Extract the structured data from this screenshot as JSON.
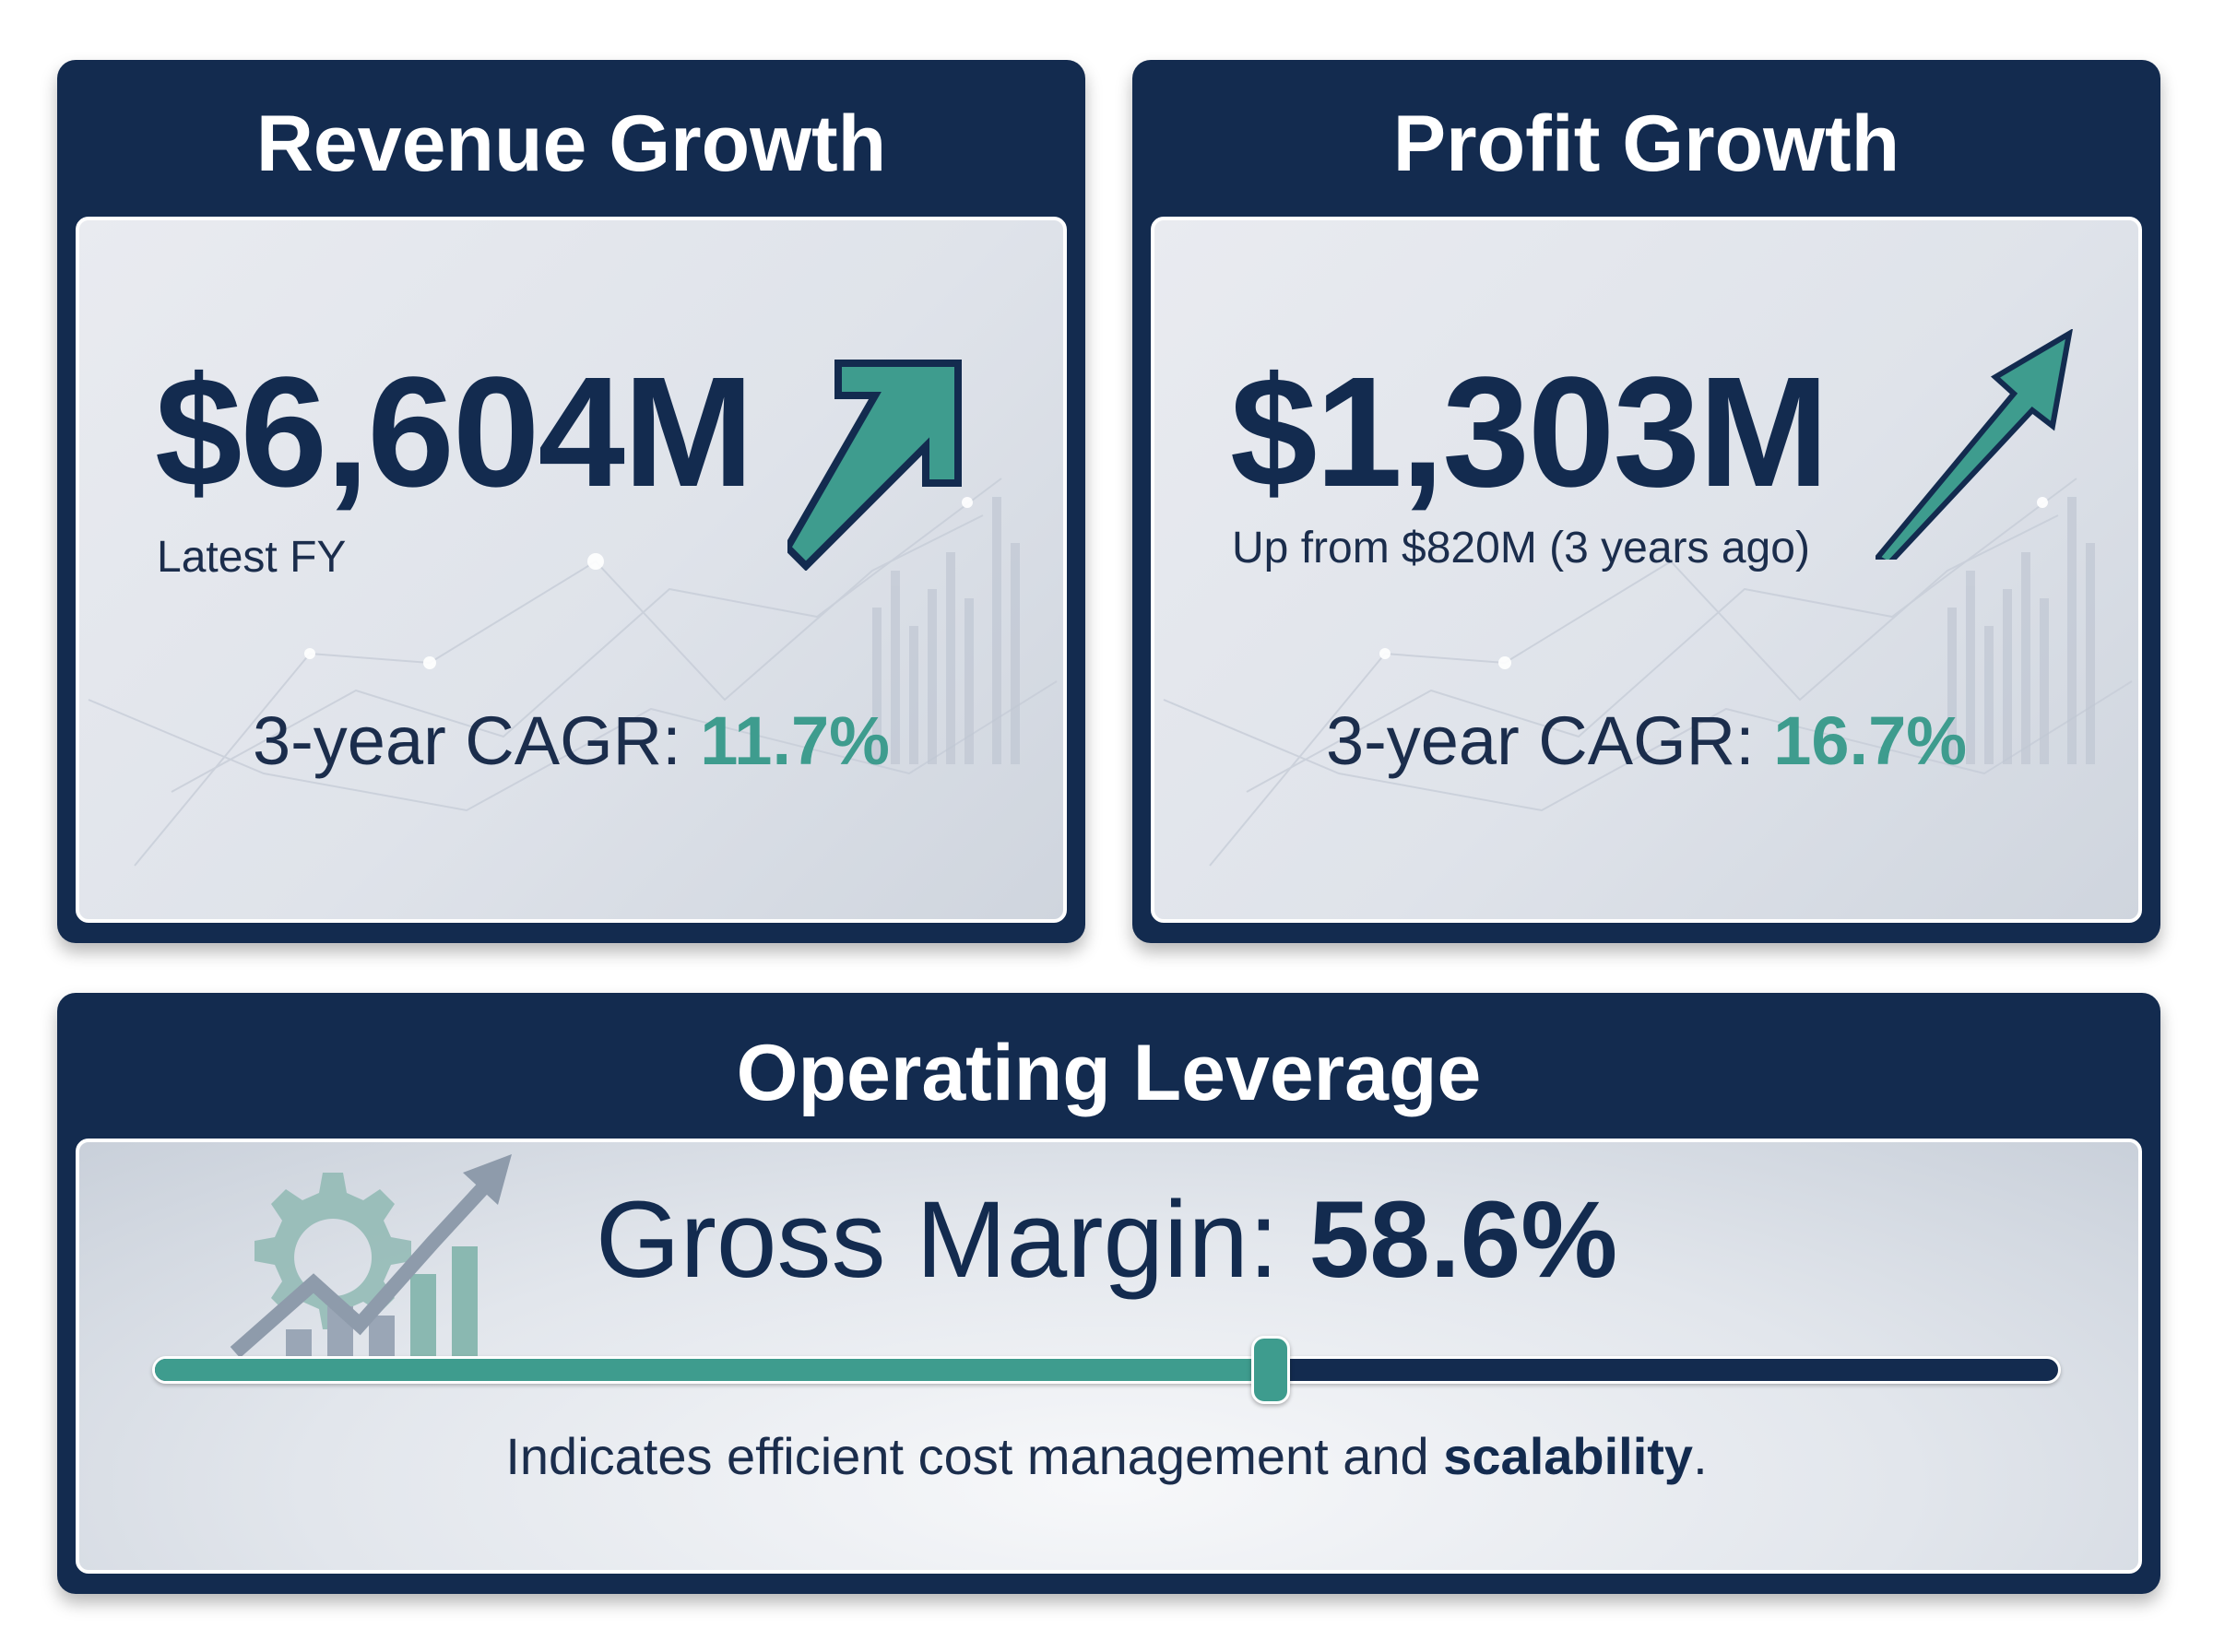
{
  "revenue": {
    "title": "Revenue Growth",
    "value": "$6,604M",
    "subtitle": "Latest FY",
    "cagr_label": "3-year CAGR: ",
    "cagr_value": "11.7%"
  },
  "profit": {
    "title": "Profit Growth",
    "value": "$1,303M",
    "subtitle": "Up from $820M (3 years ago)",
    "cagr_label": "3-year CAGR: ",
    "cagr_value": "16.7%"
  },
  "operating": {
    "title": "Operating Leverage",
    "metric_label": "Gross Margin: ",
    "metric_value": "58.6%",
    "progress_fraction": 0.586,
    "note_prefix": "Indicates efficient cost management and ",
    "note_bold": "scalability",
    "note_suffix": "."
  },
  "icons": [
    "arrow-up-right-icon",
    "trend-arrow-icon",
    "gear-growth-icon"
  ],
  "colors": {
    "navy": "#132b4f",
    "teal": "#3e9c8e",
    "panel": "#e4e7ed"
  }
}
